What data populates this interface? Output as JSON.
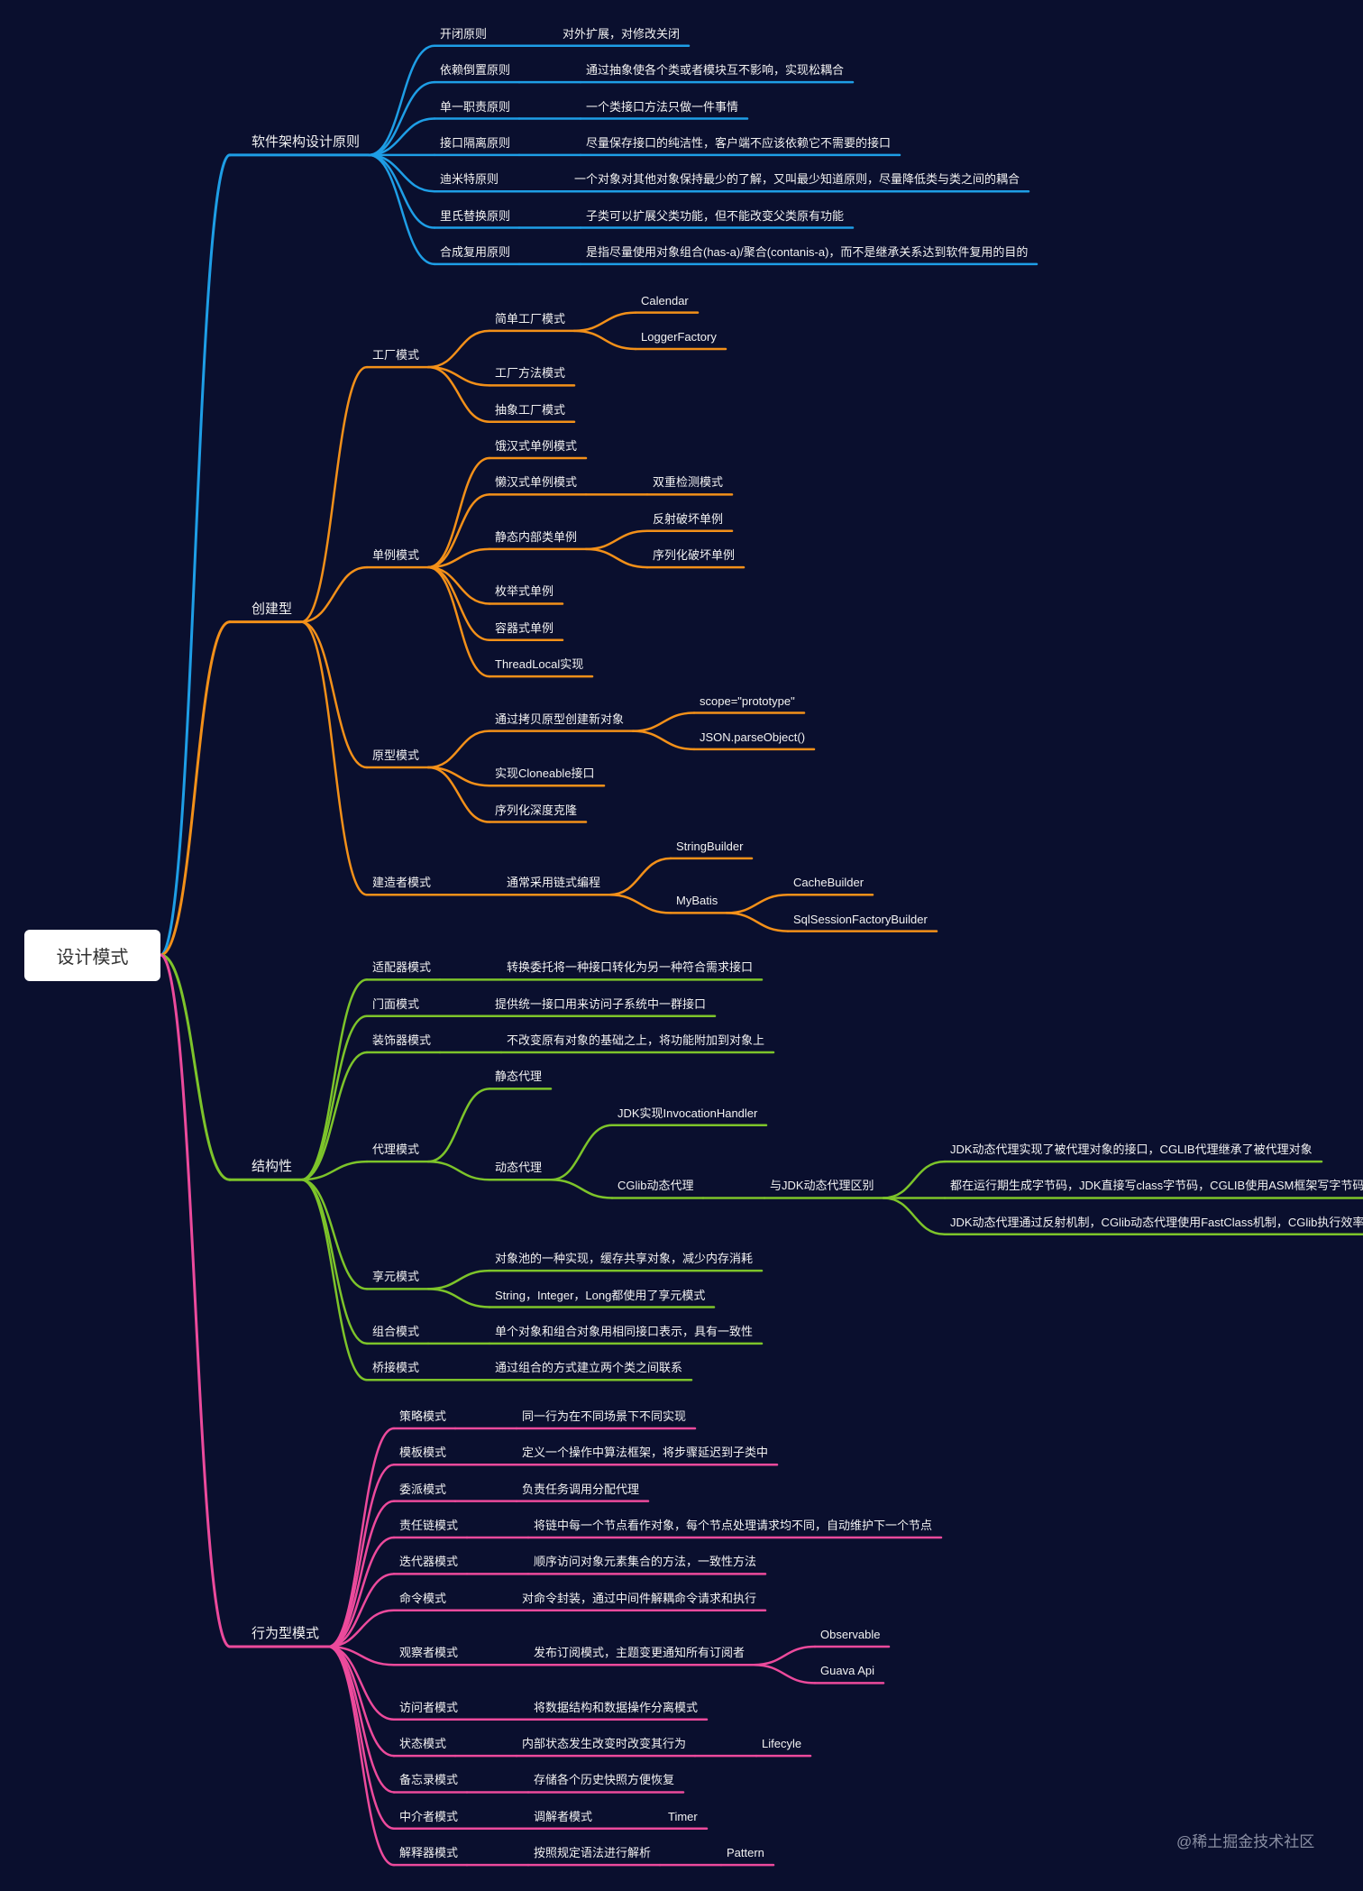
{
  "mindmap": {
    "root": {
      "label": "设计模式",
      "children": [
        {
          "label": "软件架构设计原则",
          "color": "#1e9ee6",
          "children": [
            {
              "label": "开闭原则",
              "children": [
                {
                  "label": "对外扩展，对修改关闭"
                }
              ]
            },
            {
              "label": "依赖倒置原则",
              "children": [
                {
                  "label": "通过抽象使各个类或者模块互不影响，实现松耦合"
                }
              ]
            },
            {
              "label": "单一职责原则",
              "children": [
                {
                  "label": "一个类接口方法只做一件事情"
                }
              ]
            },
            {
              "label": "接口隔离原则",
              "children": [
                {
                  "label": "尽量保存接口的纯洁性，客户端不应该依赖它不需要的接口"
                }
              ]
            },
            {
              "label": "迪米特原则",
              "children": [
                {
                  "label": "一个对象对其他对象保持最少的了解，又叫最少知道原则，尽量降低类与类之间的耦合"
                }
              ]
            },
            {
              "label": "里氏替换原则",
              "children": [
                {
                  "label": "子类可以扩展父类功能，但不能改变父类原有功能"
                }
              ]
            },
            {
              "label": "合成复用原则",
              "children": [
                {
                  "label": "是指尽量使用对象组合(has-a)/聚合(contanis-a)，而不是继承关系达到软件复用的目的"
                }
              ]
            }
          ]
        },
        {
          "label": "创建型",
          "color": "#f39019",
          "children": [
            {
              "label": "工厂模式",
              "children": [
                {
                  "label": "简单工厂模式",
                  "children": [
                    {
                      "label": "Calendar"
                    },
                    {
                      "label": "LoggerFactory"
                    }
                  ]
                },
                {
                  "label": "工厂方法模式"
                },
                {
                  "label": "抽象工厂模式"
                }
              ]
            },
            {
              "label": "单例模式",
              "children": [
                {
                  "label": "饿汉式单例模式"
                },
                {
                  "label": "懒汉式单例模式",
                  "children": [
                    {
                      "label": "双重检测模式"
                    }
                  ]
                },
                {
                  "label": "静态内部类单例",
                  "children": [
                    {
                      "label": "反射破坏单例"
                    },
                    {
                      "label": "序列化破坏单例"
                    }
                  ]
                },
                {
                  "label": "枚举式单例"
                },
                {
                  "label": "容器式单例"
                },
                {
                  "label": "ThreadLocal实现"
                }
              ]
            },
            {
              "label": "原型模式",
              "children": [
                {
                  "label": "通过拷贝原型创建新对象",
                  "children": [
                    {
                      "label": "scope=\"prototype\""
                    },
                    {
                      "label": "JSON.parseObject()"
                    }
                  ]
                },
                {
                  "label": "实现Cloneable接口"
                },
                {
                  "label": "序列化深度克隆"
                }
              ]
            },
            {
              "label": "建造者模式",
              "children": [
                {
                  "label": "通常采用链式编程",
                  "children": [
                    {
                      "label": "StringBuilder"
                    },
                    {
                      "label": "MyBatis",
                      "children": [
                        {
                          "label": "CacheBuilder"
                        },
                        {
                          "label": "SqlSessionFactoryBuilder"
                        }
                      ]
                    }
                  ]
                }
              ]
            }
          ]
        },
        {
          "label": "结构性",
          "color": "#7dc42a",
          "children": [
            {
              "label": "适配器模式",
              "children": [
                {
                  "label": "转换委托将一种接口转化为另一种符合需求接口"
                }
              ]
            },
            {
              "label": "门面模式",
              "children": [
                {
                  "label": "提供统一接口用来访问子系统中一群接口"
                }
              ]
            },
            {
              "label": "装饰器模式",
              "children": [
                {
                  "label": "不改变原有对象的基础之上，将功能附加到对象上"
                }
              ]
            },
            {
              "label": "代理模式",
              "children": [
                {
                  "label": "静态代理"
                },
                {
                  "label": "动态代理",
                  "children": [
                    {
                      "label": "JDK实现InvocationHandler"
                    },
                    {
                      "label": "CGlib动态代理",
                      "children": [
                        {
                          "label": "与JDK动态代理区别",
                          "children": [
                            {
                              "label": "JDK动态代理实现了被代理对象的接口，CGLIB代理继承了被代理对象"
                            },
                            {
                              "label": "都在运行期生成字节码，JDK直接写class字节码，CGLIB使用ASM框架写字节码"
                            },
                            {
                              "label": "JDK动态代理通过反射机制，CGlib动态代理使用FastClass机制，CGlib执行效率高"
                            }
                          ]
                        }
                      ]
                    }
                  ]
                }
              ]
            },
            {
              "label": "享元模式",
              "children": [
                {
                  "label": "对象池的一种实现，缓存共享对象，减少内存消耗"
                },
                {
                  "label": "String，Integer，Long都使用了享元模式"
                }
              ]
            },
            {
              "label": "组合模式",
              "children": [
                {
                  "label": "单个对象和组合对象用相同接口表示，具有一致性"
                }
              ]
            },
            {
              "label": "桥接模式",
              "children": [
                {
                  "label": "通过组合的方式建立两个类之间联系"
                }
              ]
            }
          ]
        },
        {
          "label": "行为型模式",
          "color": "#ec4a9c",
          "children": [
            {
              "label": "策略模式",
              "children": [
                {
                  "label": "同一行为在不同场景下不同实现"
                }
              ]
            },
            {
              "label": "模板模式",
              "children": [
                {
                  "label": "定义一个操作中算法框架，将步骤延迟到子类中"
                }
              ]
            },
            {
              "label": "委派模式",
              "children": [
                {
                  "label": "负责任务调用分配代理"
                }
              ]
            },
            {
              "label": "责任链模式",
              "children": [
                {
                  "label": "将链中每一个节点看作对象，每个节点处理请求均不同，自动维护下一个节点"
                }
              ]
            },
            {
              "label": "迭代器模式",
              "children": [
                {
                  "label": "顺序访问对象元素集合的方法，一致性方法"
                }
              ]
            },
            {
              "label": "命令模式",
              "children": [
                {
                  "label": "对命令封装，通过中间件解耦命令请求和执行"
                }
              ]
            },
            {
              "label": "观察者模式",
              "children": [
                {
                  "label": "发布订阅模式，主题变更通知所有订阅者",
                  "children": [
                    {
                      "label": "Observable"
                    },
                    {
                      "label": "Guava Api"
                    }
                  ]
                }
              ]
            },
            {
              "label": "访问者模式",
              "children": [
                {
                  "label": "将数据结构和数据操作分离模式"
                }
              ]
            },
            {
              "label": "状态模式",
              "children": [
                {
                  "label": "内部状态发生改变时改变其行为",
                  "children": [
                    {
                      "label": "Lifecyle"
                    }
                  ]
                }
              ]
            },
            {
              "label": "备忘录模式",
              "children": [
                {
                  "label": "存储各个历史快照方便恢复"
                }
              ]
            },
            {
              "label": "中介者模式",
              "children": [
                {
                  "label": "调解者模式",
                  "children": [
                    {
                      "label": "Timer"
                    }
                  ]
                }
              ]
            },
            {
              "label": "解释器模式",
              "children": [
                {
                  "label": "按照规定语法进行解析",
                  "children": [
                    {
                      "label": "Pattern"
                    }
                  ]
                }
              ]
            }
          ]
        }
      ]
    }
  },
  "watermark": "@稀土掘金技术社区"
}
